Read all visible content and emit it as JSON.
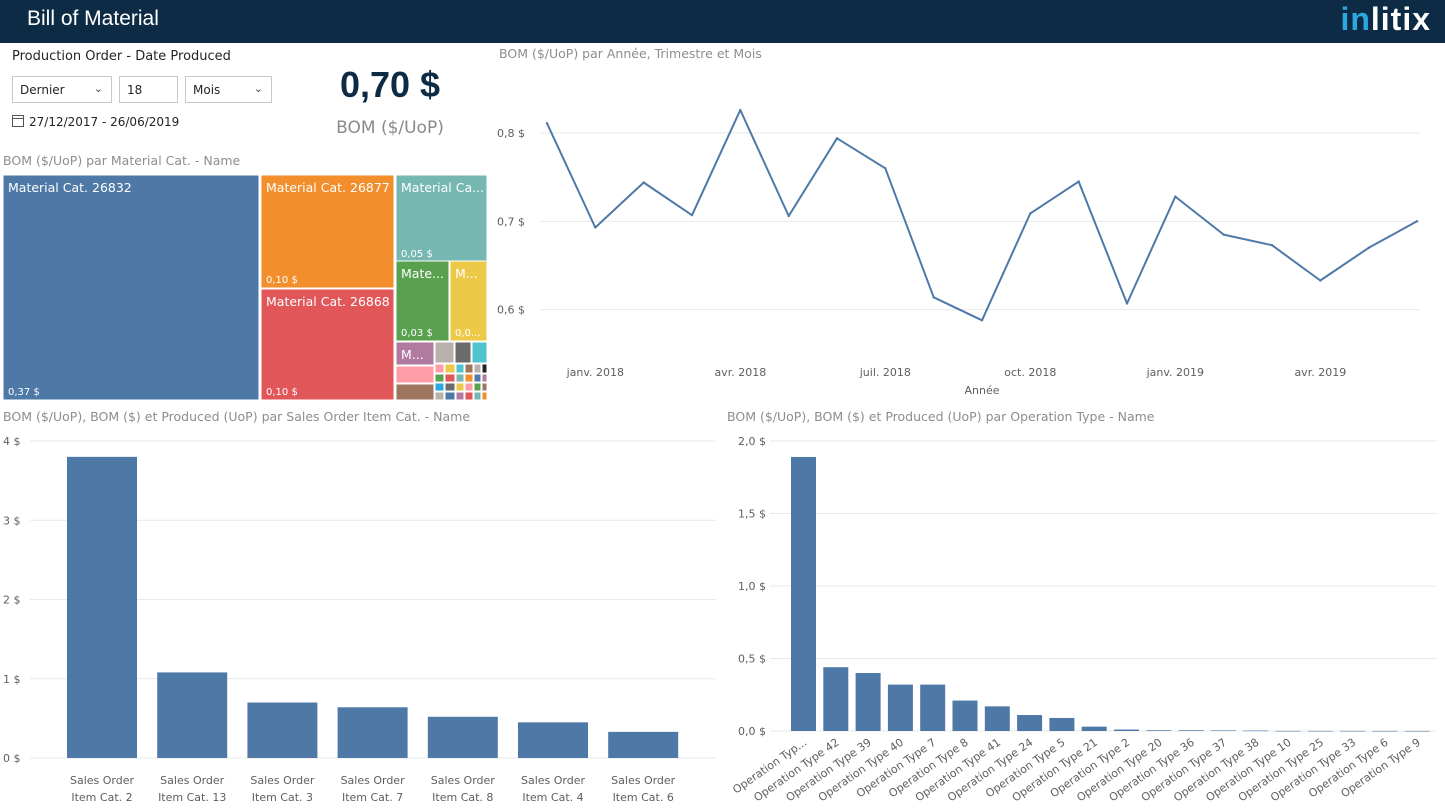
{
  "header": {
    "title": "Bill of Material",
    "brand_prefix": "in",
    "brand_suffix": "litix"
  },
  "filter": {
    "title": "Production Order - Date Produced",
    "mode": "Dernier",
    "count": "18",
    "unit": "Mois",
    "date_range": "27/12/2017 - 26/06/2019"
  },
  "kpi": {
    "value": "0,70 $",
    "label": "BOM ($/UoP)"
  },
  "colors": {
    "header_bg": "#0d2b45",
    "bar": "#4e79a7",
    "line": "#4e79a7",
    "grid": "#e9e9e9"
  },
  "chart_data": [
    {
      "id": "treemap",
      "type": "treemap",
      "title": "BOM ($/UoP) par Material Cat. - Name",
      "items": [
        {
          "name": "Material Cat. 26832",
          "label": "Material Cat. 26832",
          "value": 0.37,
          "value_label": "0,37 $",
          "color": "#4e79a7"
        },
        {
          "name": "Material Cat. 26877",
          "label": "Material Cat. 26877",
          "value": 0.1,
          "value_label": "0,10 $",
          "color": "#f28e2b"
        },
        {
          "name": "Material Cat. 26868",
          "label": "Material Cat. 26868",
          "value": 0.1,
          "value_label": "0,10 $",
          "color": "#e15759"
        },
        {
          "name": "Material Cat.",
          "label": "Material Ca...",
          "value": 0.05,
          "value_label": "0,05 $",
          "color": "#76b7b2"
        },
        {
          "name": "Material Cat.",
          "label": "Mate...",
          "value": 0.03,
          "value_label": "0,03 $",
          "color": "#59a14f"
        },
        {
          "name": "Material Cat.",
          "label": "M...",
          "value": 0.03,
          "value_label": "0,0...",
          "color": "#edc948"
        },
        {
          "name": "Material Cat.",
          "label": "M...",
          "value": 0.01,
          "value_label": "",
          "color": "#b07aa1"
        },
        {
          "name": "Material Cat.",
          "label": "",
          "value": 0.005,
          "value_label": "",
          "color": "#ff9da7"
        },
        {
          "name": "Material Cat.",
          "label": "",
          "value": 0.004,
          "value_label": "",
          "color": "#9c755f"
        },
        {
          "name": "Material Cat.",
          "label": "",
          "value": 0.004,
          "value_label": "",
          "color": "#bab0ac"
        },
        {
          "name": "Material Cat.",
          "label": "",
          "value": 0.003,
          "value_label": "",
          "color": "#6b6b6b"
        },
        {
          "name": "Material Cat.",
          "label": "",
          "value": 0.003,
          "value_label": "",
          "color": "#4fc4cf"
        }
      ]
    },
    {
      "id": "line",
      "type": "line",
      "title": "BOM ($/UoP) par Année, Trimestre et Mois",
      "xlabel": "Année",
      "ylabel": "",
      "ylim": [
        0.56,
        0.86
      ],
      "yticks": [
        0.6,
        0.7,
        0.8
      ],
      "ytick_labels": [
        "0,6 $",
        "0,7 $",
        "0,8 $"
      ],
      "xtick_labels": [
        "janv. 2018",
        "avr. 2018",
        "juil. 2018",
        "oct. 2018",
        "janv. 2019",
        "avr. 2019"
      ],
      "xtick_index": [
        1,
        4,
        7,
        10,
        13,
        16
      ],
      "values": [
        0.811,
        0.693,
        0.744,
        0.707,
        0.826,
        0.706,
        0.794,
        0.76,
        0.614,
        0.588,
        0.709,
        0.745,
        0.607,
        0.728,
        0.685,
        0.673,
        0.633,
        0.67,
        0.7
      ]
    },
    {
      "id": "sales-bar",
      "type": "bar",
      "title": "BOM ($/UoP), BOM ($) et Produced (UoP) par Sales Order Item Cat. - Name",
      "categories": [
        "Sales Order Item Cat. 2",
        "Sales Order Item Cat. 13",
        "Sales Order Item Cat. 3",
        "Sales Order Item Cat. 7",
        "Sales Order Item Cat. 8",
        "Sales Order Item Cat. 4",
        "Sales Order Item Cat. 6"
      ],
      "category_lines": [
        [
          "Sales Order",
          "Item Cat. 2"
        ],
        [
          "Sales Order",
          "Item Cat. 13"
        ],
        [
          "Sales Order",
          "Item Cat. 3"
        ],
        [
          "Sales Order",
          "Item Cat. 7"
        ],
        [
          "Sales Order",
          "Item Cat. 8"
        ],
        [
          "Sales Order",
          "Item Cat. 4"
        ],
        [
          "Sales Order",
          "Item Cat. 6"
        ]
      ],
      "values": [
        3.8,
        1.08,
        0.7,
        0.64,
        0.52,
        0.45,
        0.33
      ],
      "ylim": [
        0,
        4
      ],
      "yticks": [
        0,
        1,
        2,
        3,
        4
      ],
      "ytick_labels": [
        "0 $",
        "1 $",
        "2 $",
        "3 $",
        "4 $"
      ]
    },
    {
      "id": "operation-bar",
      "type": "bar",
      "title": "BOM ($/UoP), BOM ($) et Produced (UoP) par Operation Type - Name",
      "categories": [
        "Operation Typ...",
        "Operation Type 42",
        "Operation Type 39",
        "Operation Type 40",
        "Operation Type 7",
        "Operation Type 8",
        "Operation Type 41",
        "Operation Type 24",
        "Operation Type 5",
        "Operation Type 21",
        "Operation Type 2",
        "Operation Type 20",
        "Operation Type 36",
        "Operation Type 37",
        "Operation Type 38",
        "Operation Type 10",
        "Operation Type 25",
        "Operation Type 33",
        "Operation Type 6",
        "Operation Type 9"
      ],
      "values": [
        1.89,
        0.44,
        0.4,
        0.32,
        0.32,
        0.21,
        0.17,
        0.11,
        0.09,
        0.03,
        0.01,
        0.005,
        0.005,
        0.004,
        0.003,
        0.001,
        0.001,
        0.001,
        0.0005,
        0.0005
      ],
      "ylim": [
        0,
        2
      ],
      "yticks": [
        0,
        0.5,
        1,
        1.5,
        2
      ],
      "ytick_labels": [
        "0,0 $",
        "0,5 $",
        "1,0 $",
        "1,5 $",
        "2,0 $"
      ]
    }
  ]
}
